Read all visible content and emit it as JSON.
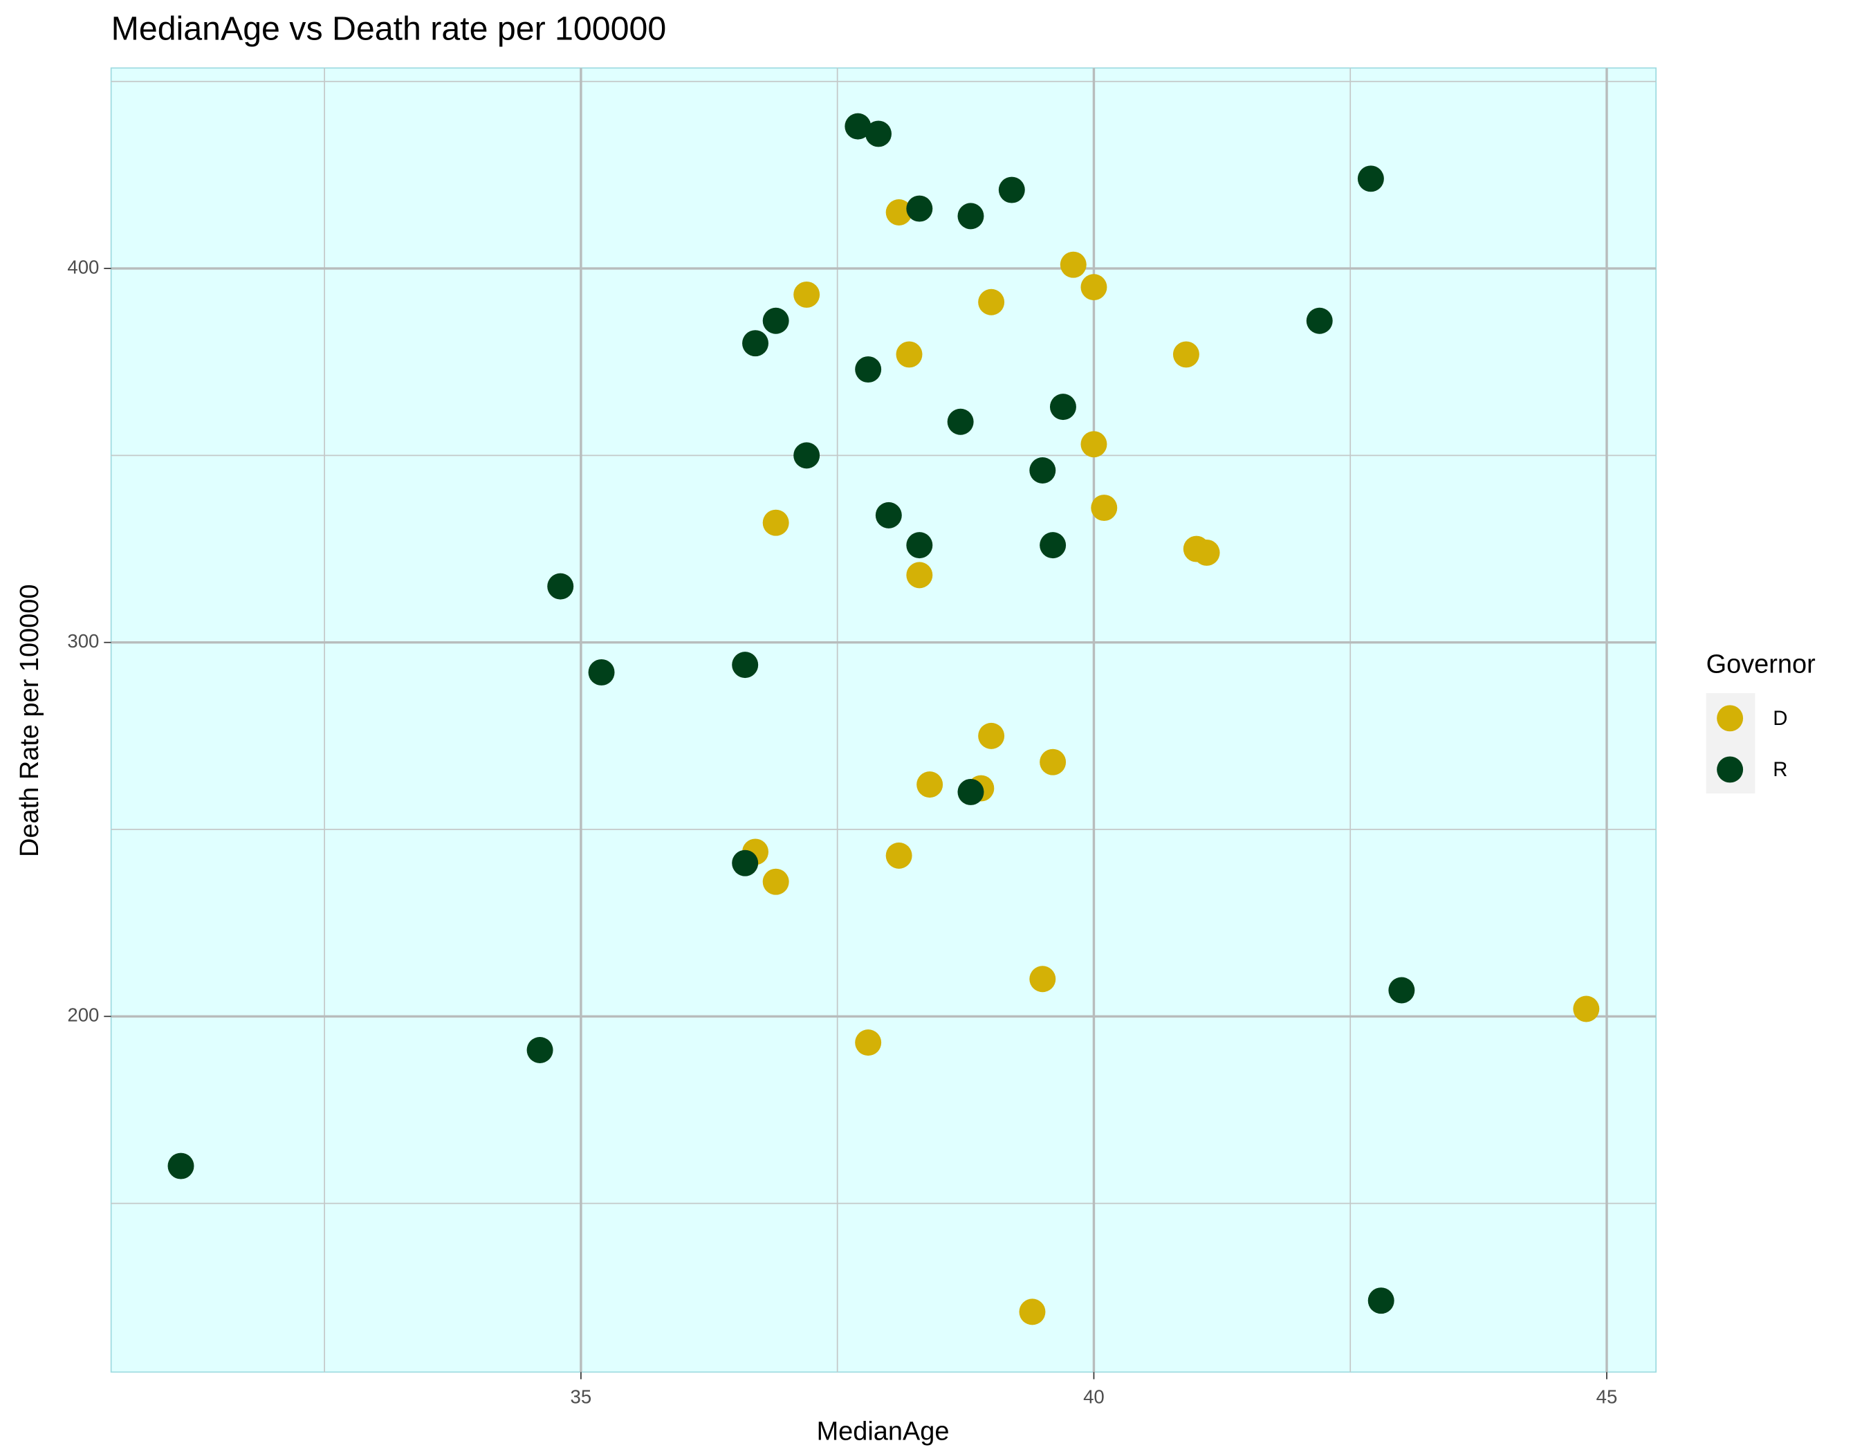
{
  "chart_data": {
    "type": "scatter",
    "title": "MedianAge vs Death rate per 100000",
    "x_label": "MedianAge",
    "y_label": "Death Rate per 100000",
    "legend_title": "Governor",
    "legend_position": "right",
    "xlim": [
      30.42,
      45.48
    ],
    "ylim": [
      104.9,
      453.6
    ],
    "xticks": [
      35,
      40,
      45
    ],
    "yticks": [
      200,
      300,
      400
    ],
    "x_minor_grid": [
      32.5,
      37.5,
      42.5
    ],
    "y_minor_grid": [
      150,
      250,
      350,
      450
    ],
    "grid": true,
    "background": "#e0ffff",
    "series": [
      {
        "name": "D",
        "color": "#d4b106",
        "x": [
          38.1,
          39.8,
          40.0,
          37.2,
          39.0,
          38.2,
          40.9,
          40.0,
          40.1,
          36.9,
          41.0,
          41.1,
          38.3,
          39.0,
          39.6,
          38.4,
          38.9,
          36.7,
          38.1,
          36.9,
          39.5,
          44.8,
          37.8,
          39.4
        ],
        "y": [
          415,
          401,
          395,
          393,
          391,
          377,
          377,
          353,
          336,
          332,
          325,
          324,
          318,
          275,
          268,
          262,
          261,
          244,
          243,
          236,
          210,
          202,
          193,
          121
        ]
      },
      {
        "name": "R",
        "color": "#00401a",
        "x": [
          37.7,
          37.9,
          38.3,
          38.8,
          39.2,
          42.7,
          42.2,
          36.9,
          36.7,
          37.8,
          38.7,
          39.7,
          37.2,
          39.5,
          38.0,
          38.3,
          39.6,
          34.8,
          35.2,
          36.6,
          38.8,
          36.6,
          43.0,
          34.6,
          31.1,
          42.8
        ],
        "y": [
          438,
          436,
          416,
          414,
          421,
          424,
          386,
          386,
          380,
          373,
          359,
          363,
          350,
          346,
          334,
          326,
          326,
          315,
          292,
          294,
          260,
          241,
          207,
          191,
          160,
          124
        ]
      }
    ]
  }
}
